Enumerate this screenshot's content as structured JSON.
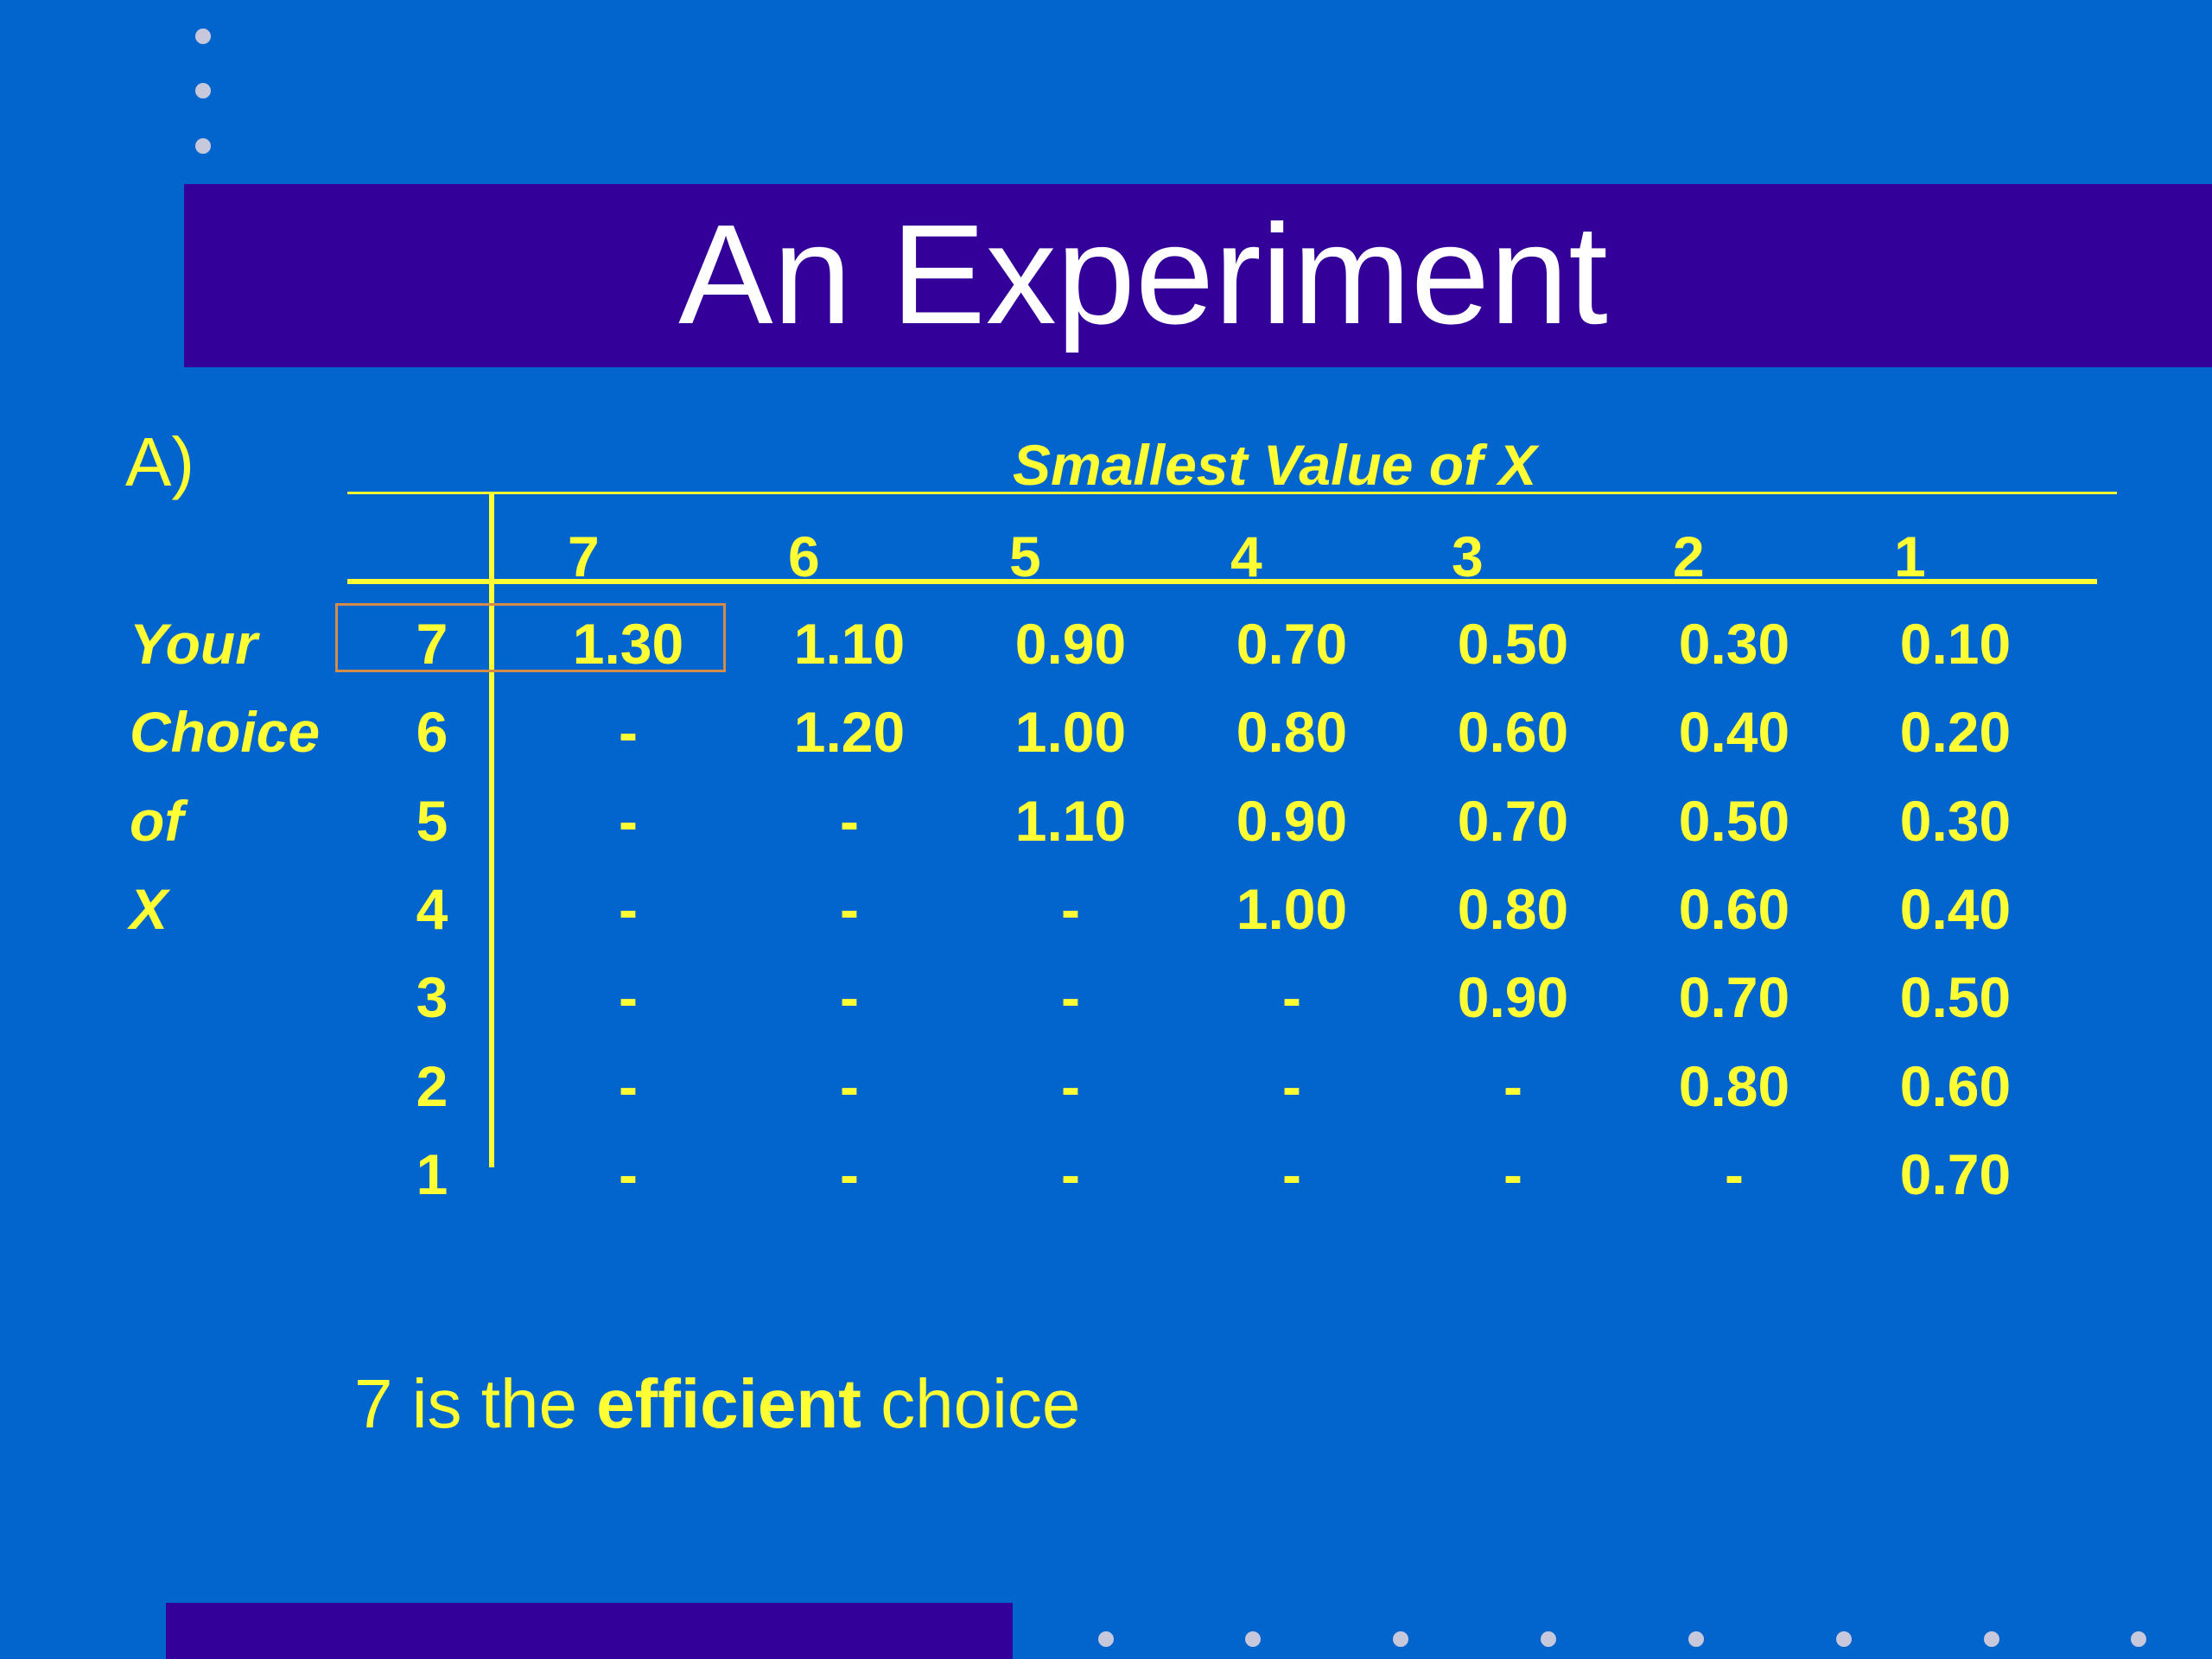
{
  "slide": {
    "title": "An Experiment",
    "section_label": "A)",
    "caption": {
      "prefix": "7 is the ",
      "emphasis": "efficient",
      "suffix": " choice"
    },
    "colors": {
      "background": "#0265ce",
      "title_band": "#330099",
      "text_accent": "#ffff33",
      "title_text": "#ffffff",
      "highlight_border": "#d48b4a"
    }
  },
  "table": {
    "column_group_title": "Smallest Value of X",
    "row_group_label": [
      "Your",
      "Choice",
      "of",
      "X"
    ],
    "column_headers": [
      "7",
      "6",
      "5",
      "4",
      "3",
      "2",
      "1"
    ],
    "rows": [
      {
        "choice": "7",
        "cells": [
          "1.30",
          "1.10",
          "0.90",
          "0.70",
          "0.50",
          "0.30",
          "0.10"
        ]
      },
      {
        "choice": "6",
        "cells": [
          "-",
          "1.20",
          "1.00",
          "0.80",
          "0.60",
          "0.40",
          "0.20"
        ]
      },
      {
        "choice": "5",
        "cells": [
          "-",
          "-",
          "1.10",
          "0.90",
          "0.70",
          "0.50",
          "0.30"
        ]
      },
      {
        "choice": "4",
        "cells": [
          "-",
          "-",
          "-",
          "1.00",
          "0.80",
          "0.60",
          "0.40"
        ]
      },
      {
        "choice": "3",
        "cells": [
          "-",
          "-",
          "-",
          "-",
          "0.90",
          "0.70",
          "0.50"
        ]
      },
      {
        "choice": "2",
        "cells": [
          "-",
          "-",
          "-",
          "-",
          "-",
          "0.80",
          "0.60"
        ]
      },
      {
        "choice": "1",
        "cells": [
          "-",
          "-",
          "-",
          "-",
          "-",
          "-",
          "0.70"
        ]
      }
    ],
    "highlighted_cell": {
      "row": "7",
      "column": "7"
    }
  }
}
